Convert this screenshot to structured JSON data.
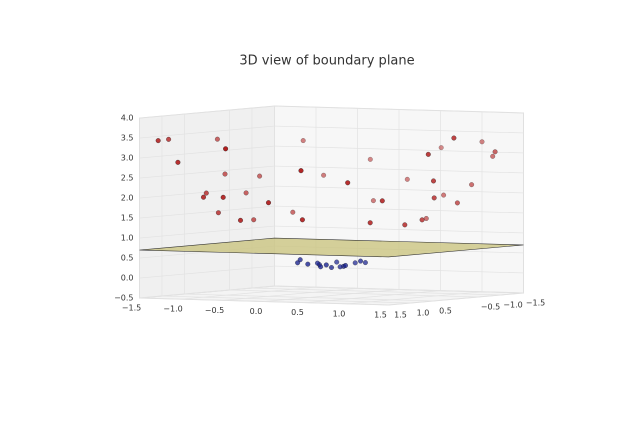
{
  "chart_data": {
    "type": "scatter3d",
    "title": "3D view of boundary plane",
    "xlim": [
      -1.5,
      1.5
    ],
    "ylim": [
      -1.5,
      1.5
    ],
    "zlim": [
      -0.5,
      4.0
    ],
    "xticks": [
      {
        "value": -1.5,
        "label": "−1.5"
      },
      {
        "value": -1.0,
        "label": "−1.0"
      },
      {
        "value": -0.5,
        "label": "−0.5"
      },
      {
        "value": 0,
        "label": "0.0"
      },
      0.5,
      {
        "value": 1,
        "label": "1.0"
      },
      1.5
    ],
    "yticks": [
      1.5,
      {
        "value": 1,
        "label": "1.0"
      },
      0.5,
      {
        "value": -0.5,
        "label": "−0.5"
      },
      {
        "value": -1.0,
        "label": "−1.0"
      },
      {
        "value": -1.5,
        "label": "−1.5"
      }
    ],
    "zticks": [
      {
        "value": -0.5,
        "label": "−0.5"
      },
      {
        "value": 0,
        "label": "0.0"
      },
      0.5,
      {
        "value": 1,
        "label": "1.0"
      },
      1.5,
      {
        "value": 2,
        "label": "2.0"
      },
      2.5,
      {
        "value": 3,
        "label": "3.0"
      },
      3.5,
      {
        "value": 4,
        "label": "4.0"
      }
    ],
    "grid": true,
    "plane": {
      "z": 0.7,
      "color": "#c8c27a"
    },
    "series": [
      {
        "color": "#b01818",
        "x": [
          1.2,
          -1.2,
          0.9,
          -0.9,
          1.3,
          -1.3,
          0.3,
          -0.2,
          1.1,
          -1.0,
          0.7,
          -0.6,
          1.4,
          -1.4,
          0.0,
          0.1,
          1.2,
          -1.3,
          0.9,
          -0.8,
          1.5,
          -1.5,
          1.4,
          -1.2,
          0.5,
          -0.4,
          1.6,
          -1.6,
          1.7,
          -1.7,
          1.0,
          -1.1,
          0.4,
          -0.3,
          1.8,
          -1.8,
          1.1,
          -1.1,
          0.6,
          -0.5
        ],
        "y": [
          0.2,
          0.3,
          0.8,
          -0.8,
          -0.4,
          -0.5,
          1.2,
          -1.3,
          0.9,
          1.0,
          -1.2,
          1.3,
          0.3,
          0.2,
          1.4,
          -1.5,
          -0.9,
          -0.8,
          1.3,
          -1.3,
          0.5,
          -0.4,
          -1.0,
          1.2,
          1.6,
          -1.6,
          0.8,
          0.9,
          -0.5,
          -0.6,
          -1.5,
          -1.4,
          -1.7,
          1.8,
          0.6,
          0.3,
          0.4,
          -0.3,
          -1.0,
          1.1
        ],
        "z": [
          1.48,
          1.53,
          1.45,
          1.45,
          1.85,
          1.94,
          1.53,
          1.73,
          2.02,
          2.0,
          1.93,
          2.05,
          2.05,
          2.0,
          1.96,
          2.26,
          2.25,
          2.33,
          2.5,
          2.33,
          2.5,
          2.41,
          2.96,
          2.88,
          2.81,
          2.72,
          3.2,
          3.37,
          3.14,
          3.25,
          3.25,
          3.17,
          3.05,
          3.33,
          3.6,
          3.33,
          1.37,
          1.3,
          1.36,
          1.46
        ]
      },
      {
        "color": "#101a8c",
        "x": [
          0.0,
          0.2,
          -0.2,
          0.3,
          -0.3,
          0.1,
          -0.1,
          0.25,
          -0.25,
          0.15,
          -0.15,
          0.35,
          -0.35,
          0.05,
          -0.05
        ],
        "y": [
          0.0,
          0.1,
          -0.1,
          -0.2,
          0.2,
          0.3,
          -0.3,
          0.15,
          -0.15,
          -0.25,
          0.25,
          0.0,
          0.05,
          -0.1,
          0.15
        ],
        "z": [
          0.2,
          0.25,
          0.25,
          0.32,
          0.32,
          0.3,
          0.3,
          0.28,
          0.28,
          0.3,
          0.3,
          0.38,
          0.38,
          0.21,
          0.23
        ]
      }
    ]
  }
}
